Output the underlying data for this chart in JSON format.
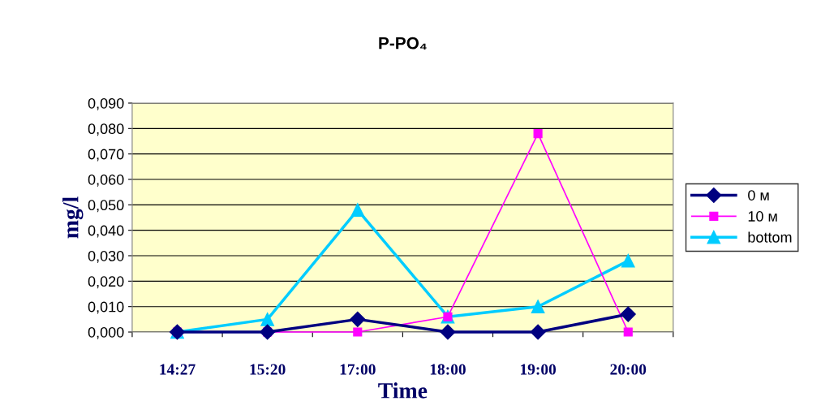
{
  "chart_data": {
    "type": "line",
    "title": "P-PO₄",
    "xlabel": "Time",
    "ylabel": "mg/l",
    "categories": [
      "14:27",
      "15:20",
      "17:00",
      "18:00",
      "19:00",
      "20:00"
    ],
    "series": [
      {
        "name": "0 м",
        "color": "#000080",
        "marker": "diamond",
        "values": [
          0,
          0,
          0.005,
          0,
          0,
          0.007
        ]
      },
      {
        "name": "10 м",
        "color": "#ff00ff",
        "marker": "square",
        "values": [
          0,
          0,
          0,
          0.006,
          0.078,
          0
        ]
      },
      {
        "name": "bottom",
        "color": "#00ccff",
        "marker": "triangle",
        "values": [
          0,
          0.005,
          0.048,
          0.006,
          0.01,
          0.028
        ]
      }
    ],
    "ylim": [
      0,
      0.09
    ],
    "yticks": [
      {
        "value": 0,
        "label": "0,000"
      },
      {
        "value": 0.01,
        "label": "0,010"
      },
      {
        "value": 0.02,
        "label": "0,020"
      },
      {
        "value": 0.03,
        "label": "0,030"
      },
      {
        "value": 0.04,
        "label": "0,040"
      },
      {
        "value": 0.05,
        "label": "0,050"
      },
      {
        "value": 0.06,
        "label": "0,060"
      },
      {
        "value": 0.07,
        "label": "0,070"
      },
      {
        "value": 0.08,
        "label": "0,080"
      },
      {
        "value": 0.09,
        "label": "0,090"
      }
    ],
    "grid": "y",
    "legend": "right"
  }
}
